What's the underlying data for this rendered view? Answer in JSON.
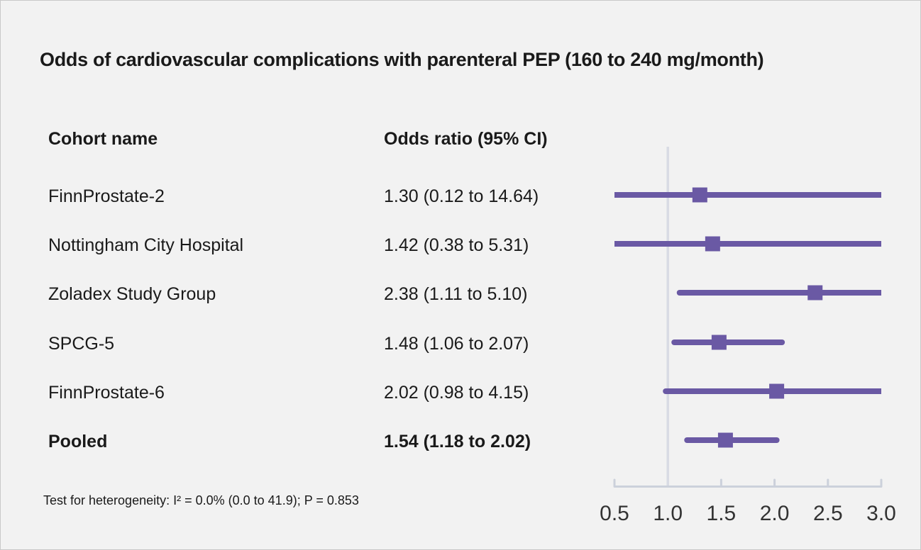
{
  "title": "Odds of cardiovascular complications with parenteral PEP (160 to 240 mg/month)",
  "table": {
    "col1_header": "Cohort name",
    "col2_header": "Odds ratio (95% CI)"
  },
  "footnote": "Test for heterogeneity: I² = 0.0% (0.0 to 41.9); P = 0.853",
  "colors": {
    "marker_purple": "#6a59a4",
    "reference_line": "#d8dbe4",
    "axis_line": "#ccd1db",
    "tick_label": "#333333",
    "text": "#1a1a1a",
    "background": "#f2f2f2"
  },
  "chart_data": {
    "type": "forest",
    "title": "Odds of cardiovascular complications with parenteral PEP (160 to 240 mg/month)",
    "xlim": [
      0.5,
      3.0
    ],
    "reference_line": 1.0,
    "tick_values": [
      0.5,
      1.0,
      1.5,
      2.0,
      2.5,
      3.0
    ],
    "tick_labels": [
      "0.5",
      "1.0",
      "1.5",
      "2.0",
      "2.5",
      "3.0"
    ],
    "rows": [
      {
        "label": "FinnProstate-2",
        "or_text": "1.30 (0.12 to 14.64)",
        "or": 1.3,
        "ci_low": 0.12,
        "ci_high": 14.64,
        "bold": false
      },
      {
        "label": "Nottingham City Hospital",
        "or_text": "1.42 (0.38 to 5.31)",
        "or": 1.42,
        "ci_low": 0.38,
        "ci_high": 5.31,
        "bold": false
      },
      {
        "label": "Zoladex Study Group",
        "or_text": "2.38 (1.11 to 5.10)",
        "or": 2.38,
        "ci_low": 1.11,
        "ci_high": 5.1,
        "bold": false
      },
      {
        "label": "SPCG-5",
        "or_text": "1.48 (1.06 to 2.07)",
        "or": 1.48,
        "ci_low": 1.06,
        "ci_high": 2.07,
        "bold": false
      },
      {
        "label": "FinnProstate-6",
        "or_text": "2.02 (0.98 to 4.15)",
        "or": 2.02,
        "ci_low": 0.98,
        "ci_high": 4.15,
        "bold": false
      },
      {
        "label": "Pooled",
        "or_text": "1.54 (1.18 to 2.02)",
        "or": 1.54,
        "ci_low": 1.18,
        "ci_high": 2.02,
        "bold": true
      }
    ]
  }
}
